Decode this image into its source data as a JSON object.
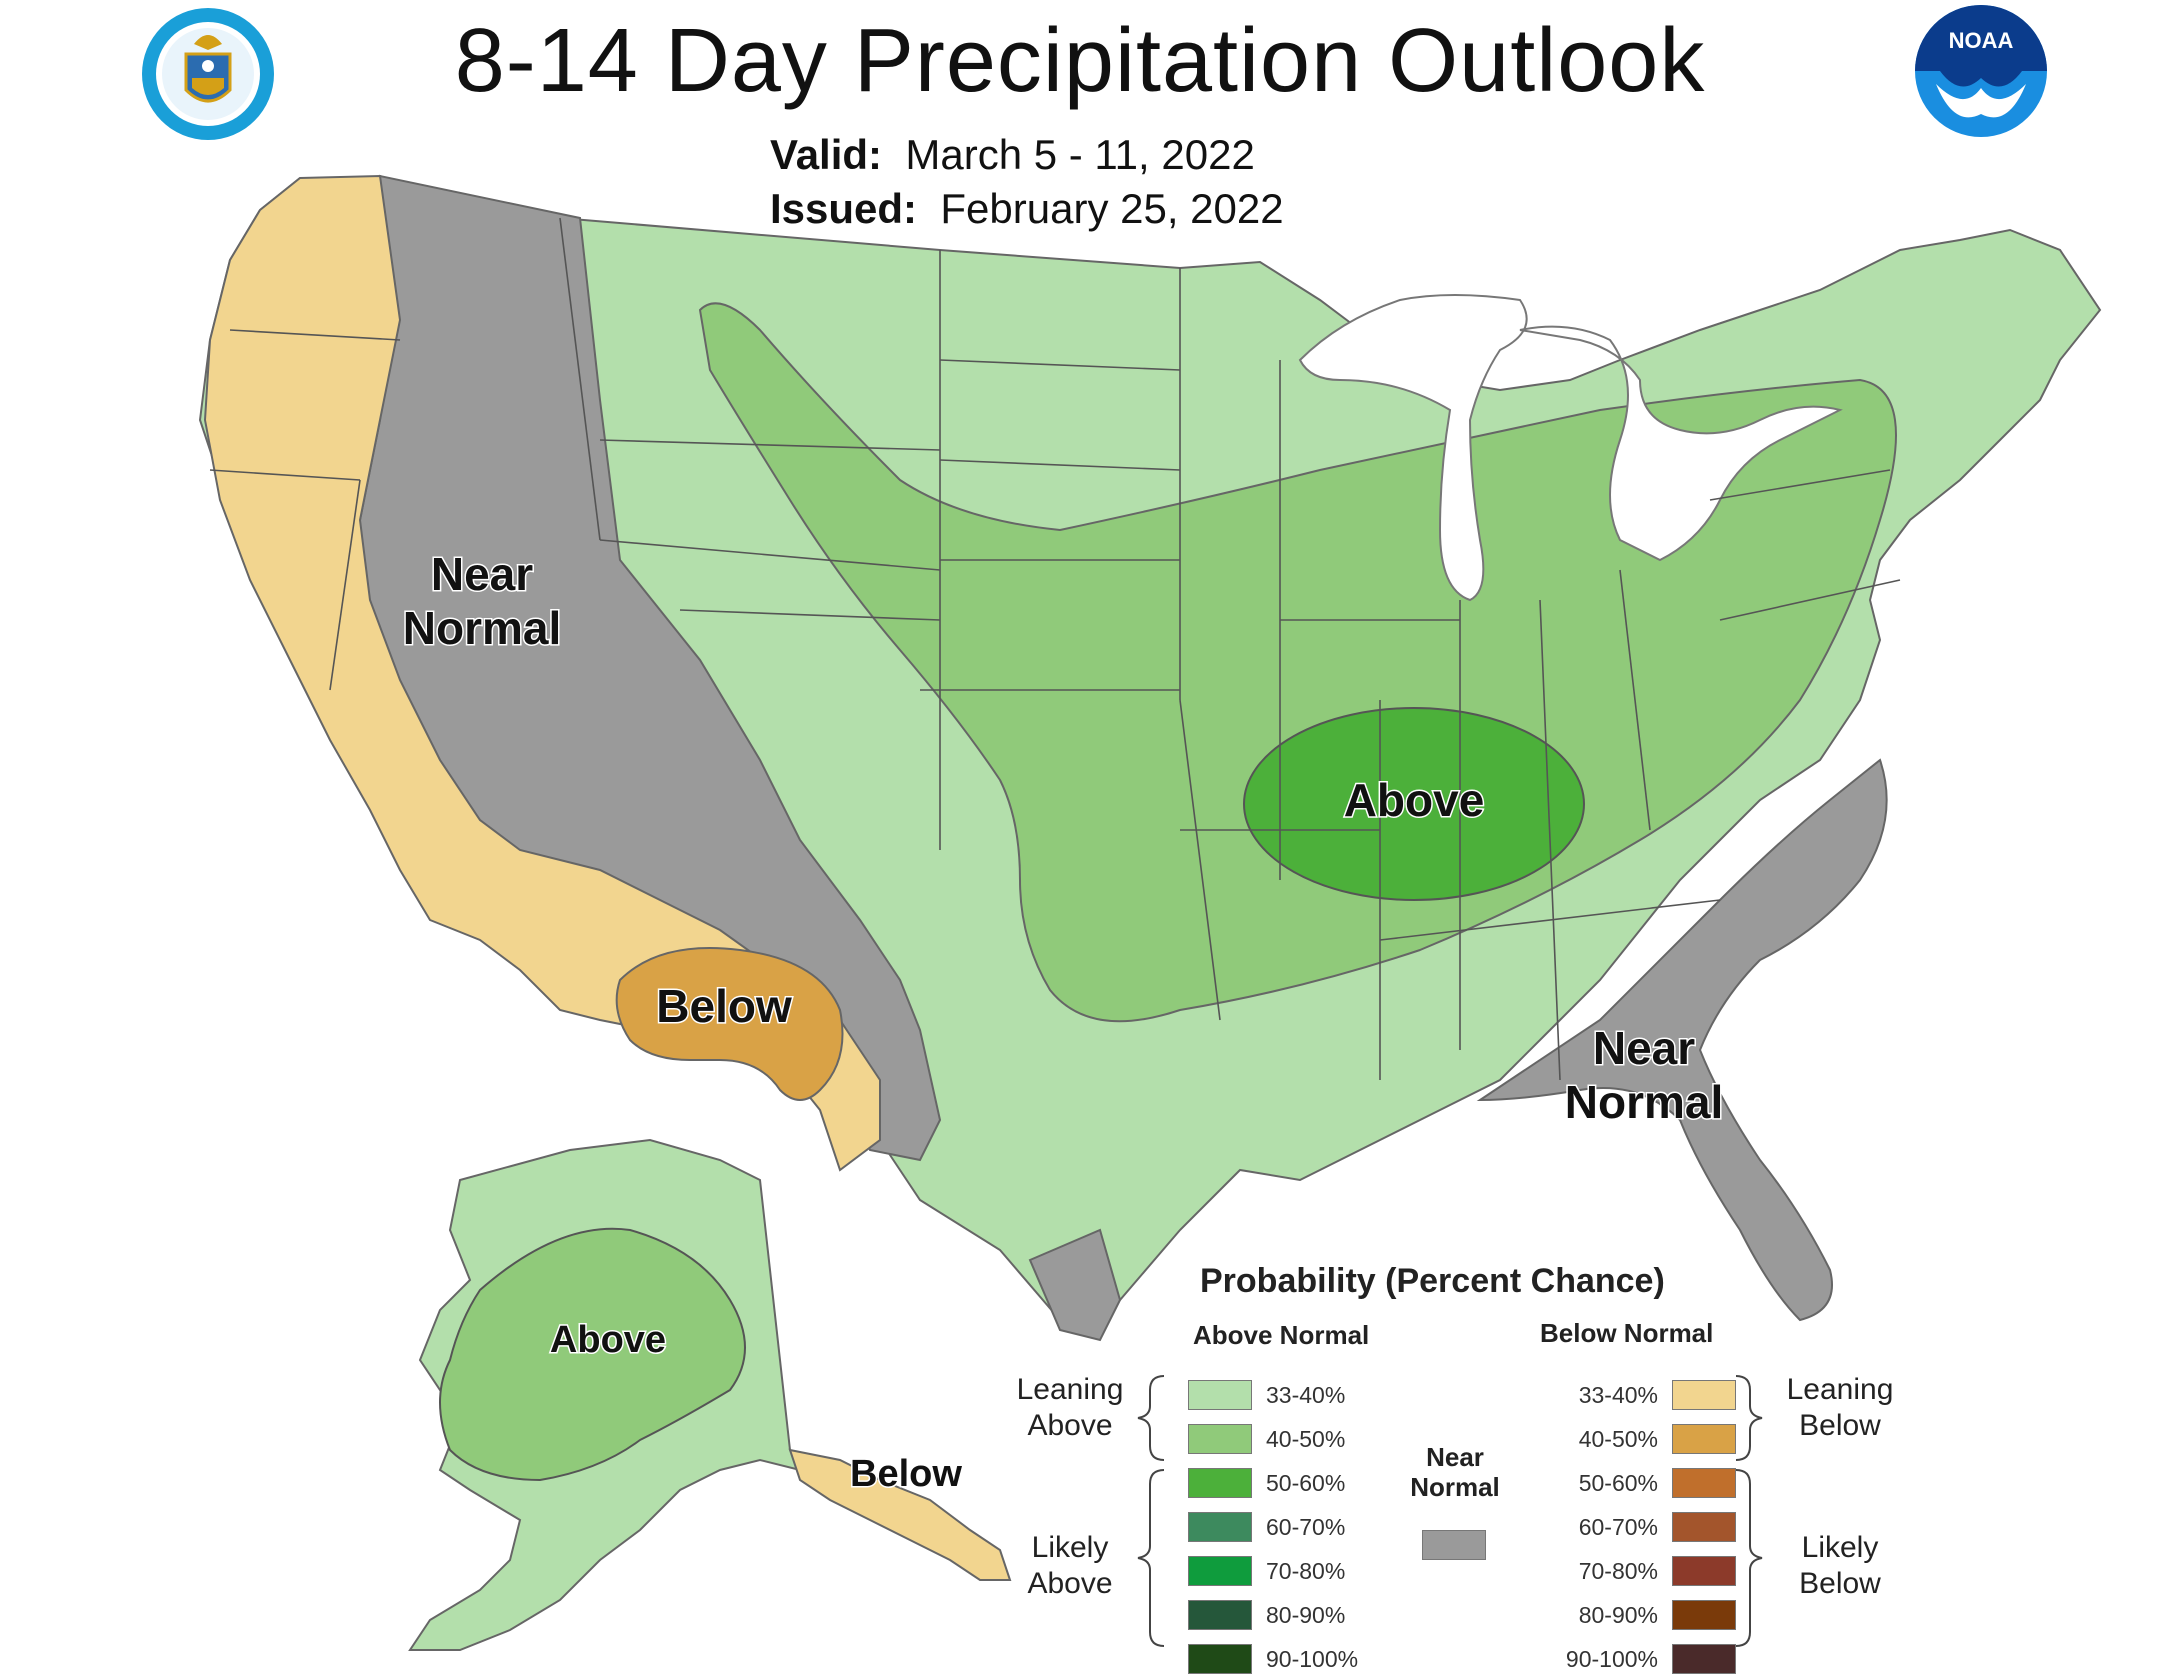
{
  "header": {
    "title": "8-14 Day Precipitation Outlook",
    "valid_label": "Valid:",
    "valid_value": "March 5 - 11, 2022",
    "issued_label": "Issued:",
    "issued_value": "February 25, 2022"
  },
  "map": {
    "labels": {
      "near_normal_west": [
        "Near",
        "Normal"
      ],
      "below_sw": "Below",
      "above_central": "Above",
      "near_normal_se": [
        "Near",
        "Normal"
      ],
      "above_alaska": "Above",
      "below_alaska": "Below"
    }
  },
  "legend": {
    "title": "Probability (Percent Chance)",
    "above_header": "Above Normal",
    "below_header": "Below Normal",
    "near_normal_label": [
      "Near",
      "Normal"
    ],
    "leaning_above": [
      "Leaning",
      "Above"
    ],
    "likely_above": [
      "Likely",
      "Above"
    ],
    "leaning_below": [
      "Leaning",
      "Below"
    ],
    "likely_below": [
      "Likely",
      "Below"
    ],
    "above_items": [
      {
        "range": "33-40%",
        "color": "#b3dfab"
      },
      {
        "range": "40-50%",
        "color": "#90ca7a"
      },
      {
        "range": "50-60%",
        "color": "#4cb03a"
      },
      {
        "range": "60-70%",
        "color": "#3d8a5e"
      },
      {
        "range": "70-80%",
        "color": "#0f9c3d"
      },
      {
        "range": "80-90%",
        "color": "#25573a"
      },
      {
        "range": "90-100%",
        "color": "#1f4a17"
      }
    ],
    "below_items": [
      {
        "range": "33-40%",
        "color": "#f2d58f"
      },
      {
        "range": "40-50%",
        "color": "#d9a246"
      },
      {
        "range": "50-60%",
        "color": "#c06f2c"
      },
      {
        "range": "60-70%",
        "color": "#a3552c"
      },
      {
        "range": "70-80%",
        "color": "#8c3a2a"
      },
      {
        "range": "80-90%",
        "color": "#7a3a0a"
      },
      {
        "range": "90-100%",
        "color": "#4a2a2a"
      }
    ],
    "near_normal_color": "#9a9a9a"
  },
  "colors": {
    "leaning_above": "#b3dfab",
    "above_40_50": "#90ca7a",
    "above_50_60": "#4cb03a",
    "near_normal": "#9a9a9a",
    "leaning_below": "#f2d58f",
    "below_40_50": "#d9a246",
    "state_lines": "#555555"
  },
  "logos": {
    "left_icon": "department-of-commerce-seal-icon",
    "right_icon": "noaa-logo-icon",
    "right_text": "NOAA"
  }
}
